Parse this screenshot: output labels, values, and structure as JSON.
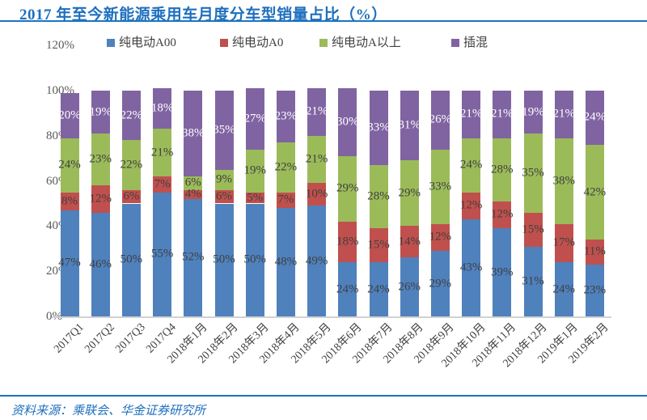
{
  "header": {
    "title": "2017 年至今新能源乘用车月度分车型销量占比（%）"
  },
  "footer": {
    "source": "资料来源：乘联会、华金证券研究所"
  },
  "colors": {
    "title_blue": "#1E6FBE",
    "rule_blue": "#1B74C4",
    "axis_text": "#595959",
    "data_label_dark": "#404040",
    "baseline_gray": "#D2D2D2"
  },
  "chart_data": {
    "type": "bar",
    "stacked": true,
    "stack_unit": "percent",
    "title": "2017 年至今新能源乘用车月度分车型销量占比（%）",
    "legend_position": "top-inside",
    "gridlines": false,
    "data_label_suffix": "%",
    "y_axis": {
      "min": 0,
      "max": 120,
      "tick_step": 20,
      "tick_labels": [
        "0%",
        "20%",
        "40%",
        "60%",
        "80%",
        "100%",
        "120%"
      ]
    },
    "categories": [
      "2017Q1",
      "2017Q2",
      "2017Q3",
      "2017Q4",
      "2018年1月",
      "2018年2月",
      "2018年3月",
      "2018年4月",
      "2018年5月",
      "2018年6月",
      "2018年7月",
      "2018年8月",
      "2018年9月",
      "2018年10月",
      "2018年11月",
      "2018年12月",
      "2019年1月",
      "2019年2月"
    ],
    "series": [
      {
        "name": "纯电动A00",
        "color": "#4F81BD",
        "label_color": "#404040",
        "values": [
          47,
          46,
          50,
          55,
          52,
          50,
          50,
          48,
          49,
          24,
          24,
          26,
          29,
          43,
          39,
          31,
          24,
          23
        ]
      },
      {
        "name": "纯电动A0",
        "color": "#C0504D",
        "label_color": "#404040",
        "values": [
          8,
          12,
          6,
          7,
          4,
          6,
          5,
          7,
          10,
          18,
          15,
          14,
          12,
          12,
          12,
          15,
          17,
          11
        ]
      },
      {
        "name": "纯电动A以上",
        "color": "#9BBB59",
        "label_color": "#404040",
        "values": [
          24,
          23,
          22,
          21,
          6,
          9,
          19,
          22,
          21,
          29,
          28,
          29,
          33,
          24,
          28,
          35,
          38,
          42
        ]
      },
      {
        "name": "插混",
        "color": "#8064A2",
        "label_color": "#FFFFFF",
        "values": [
          20,
          19,
          22,
          18,
          38,
          35,
          27,
          23,
          21,
          30,
          33,
          31,
          26,
          21,
          21,
          19,
          21,
          24
        ]
      }
    ]
  }
}
